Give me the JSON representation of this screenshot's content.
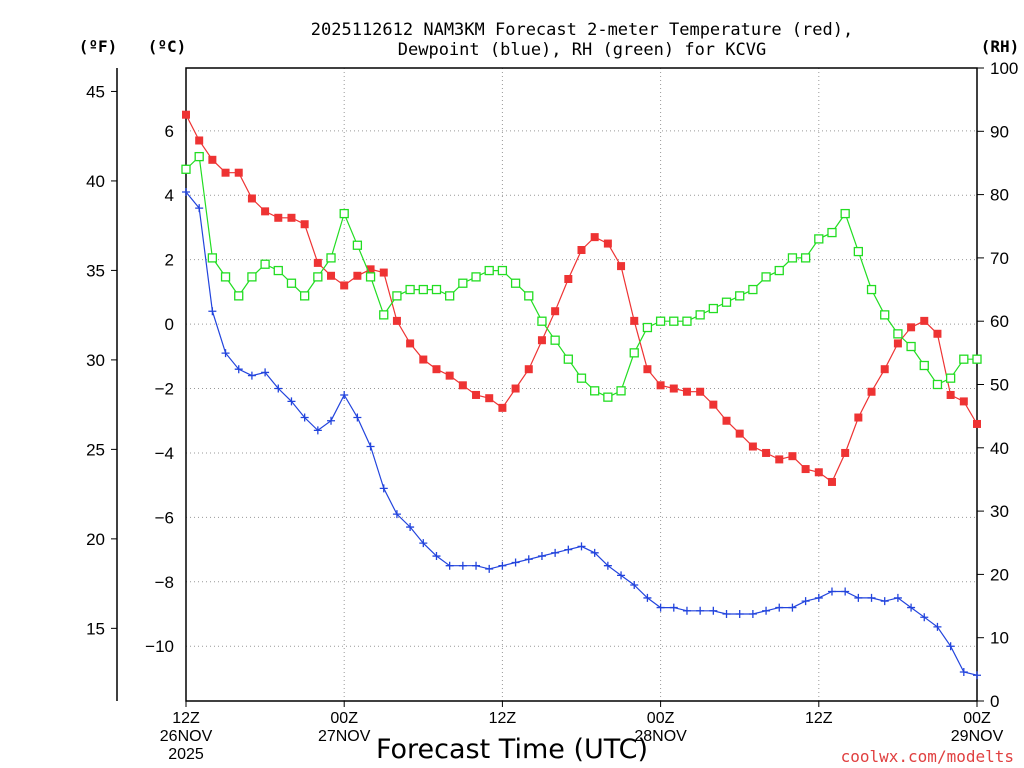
{
  "chart_data": {
    "type": "line",
    "title_line1": "2025112612 NAM3KM Forecast 2-meter Temperature (red),",
    "title_line2": "Dewpoint (blue), RH (green) for KCVG",
    "xlabel": "Forecast Time (UTC)",
    "credit": "coolwx.com/modelts",
    "units": {
      "fahrenheit": "(ºF)",
      "celsius": "(ºC)",
      "rh": "(RH)"
    },
    "x_range_hours": [
      0,
      60
    ],
    "x_ticks": [
      {
        "hour": 0,
        "line1": "12Z",
        "line2": "26NOV",
        "line3": "2025"
      },
      {
        "hour": 12,
        "line1": "00Z",
        "line2": "27NOV",
        "line3": ""
      },
      {
        "hour": 24,
        "line1": "12Z",
        "line2": "",
        "line3": ""
      },
      {
        "hour": 36,
        "line1": "00Z",
        "line2": "28NOV",
        "line3": ""
      },
      {
        "hour": 48,
        "line1": "12Z",
        "line2": "",
        "line3": ""
      },
      {
        "hour": 60,
        "line1": "00Z",
        "line2": "29NOV",
        "line3": ""
      }
    ],
    "celsius_range": [
      -11.7,
      7.95
    ],
    "celsius_ticks": [
      "6",
      "4",
      "2",
      "0",
      "−2",
      "−4",
      "−6",
      "−8",
      "−10"
    ],
    "celsius_tick_values": [
      6,
      4,
      2,
      0,
      -2,
      -4,
      -6,
      -8,
      -10
    ],
    "fahrenheit_ticks": [
      "45",
      "40",
      "35",
      "30",
      "25",
      "20",
      "15"
    ],
    "fahrenheit_tick_values": [
      45,
      40,
      35,
      30,
      25,
      20,
      15
    ],
    "rh_range": [
      0,
      100
    ],
    "rh_ticks": [
      "100",
      "90",
      "80",
      "70",
      "60",
      "50",
      "40",
      "30",
      "20",
      "10",
      "0"
    ],
    "rh_tick_values": [
      100,
      90,
      80,
      70,
      60,
      50,
      40,
      30,
      20,
      10,
      0
    ],
    "series": [
      {
        "name": "Temperature (°C)",
        "color": "#ee3333",
        "marker": "filled-square",
        "axis": "celsius",
        "values": [
          6.5,
          5.7,
          5.1,
          4.7,
          4.7,
          3.9,
          3.5,
          3.3,
          3.3,
          3.1,
          1.9,
          1.5,
          1.2,
          1.5,
          1.7,
          1.6,
          0.1,
          -0.6,
          -1.1,
          -1.4,
          -1.6,
          -1.9,
          -2.2,
          -2.3,
          -2.6,
          -2.0,
          -1.4,
          -0.5,
          0.4,
          1.4,
          2.3,
          2.7,
          2.5,
          1.8,
          0.1,
          -1.4,
          -1.9,
          -2.0,
          -2.1,
          -2.1,
          -2.5,
          -3.0,
          -3.4,
          -3.8,
          -4.0,
          -4.2,
          -4.1,
          -4.5,
          -4.6,
          -4.9,
          -4.0,
          -2.9,
          -2.1,
          -1.4,
          -0.6,
          -0.1,
          0.1,
          -0.3,
          -2.2,
          -2.4,
          -3.1
        ]
      },
      {
        "name": "Dewpoint (°C)",
        "color": "#2244dd",
        "marker": "plus",
        "axis": "celsius",
        "values": [
          4.1,
          3.6,
          0.4,
          -0.9,
          -1.4,
          -1.6,
          -1.5,
          -2.0,
          -2.4,
          -2.9,
          -3.3,
          -3.0,
          -2.2,
          -2.9,
          -3.8,
          -5.1,
          -5.9,
          -6.3,
          -6.8,
          -7.2,
          -7.5,
          -7.5,
          -7.5,
          -7.6,
          -7.5,
          -7.4,
          -7.3,
          -7.2,
          -7.1,
          -7.0,
          -6.9,
          -7.1,
          -7.5,
          -7.8,
          -8.1,
          -8.5,
          -8.8,
          -8.8,
          -8.9,
          -8.9,
          -8.9,
          -9.0,
          -9.0,
          -9.0,
          -8.9,
          -8.8,
          -8.8,
          -8.6,
          -8.5,
          -8.3,
          -8.3,
          -8.5,
          -8.5,
          -8.6,
          -8.5,
          -8.8,
          -9.1,
          -9.4,
          -10.0,
          -10.8,
          -10.9
        ]
      },
      {
        "name": "RH (%)",
        "color": "#22dd22",
        "marker": "open-square",
        "axis": "rh",
        "values": [
          84,
          86,
          70,
          67,
          64,
          67,
          69,
          68,
          66,
          64,
          67,
          70,
          77,
          72,
          67,
          61,
          64,
          65,
          65,
          65,
          64,
          66,
          67,
          68,
          68,
          66,
          64,
          60,
          57,
          54,
          51,
          49,
          48,
          49,
          55,
          59,
          60,
          60,
          60,
          61,
          62,
          63,
          64,
          65,
          67,
          68,
          70,
          70,
          73,
          74,
          77,
          71,
          65,
          61,
          58,
          56,
          53,
          50,
          51,
          54,
          54
        ]
      }
    ]
  }
}
